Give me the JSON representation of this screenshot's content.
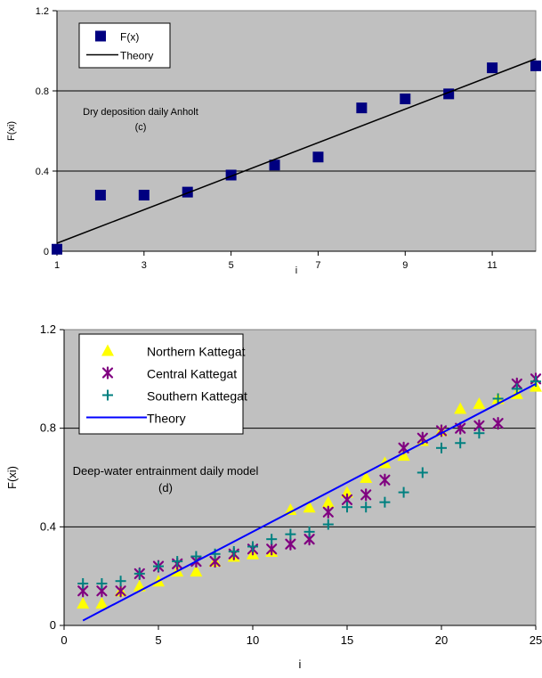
{
  "chart_data": [
    {
      "type": "scatter",
      "title": "",
      "annotation": "Dry deposition daily Anholt",
      "panel_label": "(c)",
      "xlabel": "i",
      "ylabel": "F(xi)",
      "xlim": [
        1,
        12
      ],
      "ylim": [
        0,
        1.2
      ],
      "xticks": [
        1,
        3,
        5,
        7,
        9,
        11
      ],
      "yticks": [
        0,
        0.4,
        0.8,
        1.2
      ],
      "ytick_labels": [
        "0",
        "0.4",
        "0.8",
        "1.2"
      ],
      "grid": "horizontal",
      "plot_background": "#c0c0c0",
      "legend": {
        "placement": "top-left",
        "entries": [
          "F(x)",
          "Theory"
        ]
      },
      "series": [
        {
          "name": "F(x)",
          "marker": "square",
          "color": "#000080",
          "x": [
            1,
            2,
            3,
            4,
            5,
            6,
            7,
            8,
            9,
            10,
            11,
            12
          ],
          "y": [
            0.01,
            0.28,
            0.28,
            0.295,
            0.38,
            0.43,
            0.47,
            0.715,
            0.76,
            0.785,
            0.915,
            0.925
          ]
        },
        {
          "name": "Theory",
          "marker": "line",
          "color": "#000000",
          "x": [
            1,
            12
          ],
          "y": [
            0.04,
            0.96
          ]
        }
      ]
    },
    {
      "type": "scatter",
      "title": "",
      "annotation": "Deep-water entrainment daily model",
      "panel_label": "(d)",
      "xlabel": "i",
      "ylabel": "F(xi)",
      "xlim": [
        0,
        25
      ],
      "ylim": [
        0,
        1.2
      ],
      "xticks": [
        0,
        5,
        10,
        15,
        20,
        25
      ],
      "yticks": [
        0,
        0.4,
        0.8,
        1.2
      ],
      "ytick_labels": [
        "0",
        "0.4",
        "0.8",
        "1.2"
      ],
      "grid": "horizontal",
      "plot_background": "#c0c0c0",
      "legend": {
        "placement": "top-left",
        "entries": [
          "Northern Kattegat",
          "Central Kattegat",
          "Southern Kattegat",
          "Theory"
        ]
      },
      "series": [
        {
          "name": "Northern Kattegat",
          "marker": "triangle",
          "color": "#ffff00",
          "x": [
            1,
            2,
            3,
            4,
            5,
            6,
            7,
            8,
            9,
            10,
            11,
            12,
            13,
            14,
            15,
            16,
            17,
            18,
            19,
            20,
            21,
            22,
            23,
            24,
            25
          ],
          "y": [
            0.09,
            0.09,
            0.14,
            0.16,
            0.18,
            0.22,
            0.22,
            0.26,
            0.28,
            0.29,
            0.3,
            0.47,
            0.48,
            0.5,
            0.54,
            0.6,
            0.66,
            0.69,
            0.75,
            0.79,
            0.88,
            0.9,
            0.92,
            0.94,
            0.97
          ]
        },
        {
          "name": "Central Kattegat",
          "marker": "asterisk",
          "color": "#800080",
          "x": [
            1,
            2,
            3,
            4,
            5,
            6,
            7,
            8,
            9,
            10,
            11,
            12,
            13,
            14,
            15,
            16,
            17,
            18,
            19,
            20,
            21,
            22,
            23,
            24,
            25
          ],
          "y": [
            0.14,
            0.14,
            0.14,
            0.21,
            0.24,
            0.25,
            0.26,
            0.26,
            0.29,
            0.31,
            0.31,
            0.33,
            0.35,
            0.46,
            0.51,
            0.53,
            0.59,
            0.72,
            0.76,
            0.79,
            0.8,
            0.81,
            0.82,
            0.98,
            1.0
          ]
        },
        {
          "name": "Southern Kattegat",
          "marker": "plus",
          "color": "#008080",
          "x": [
            1,
            2,
            3,
            4,
            5,
            6,
            7,
            8,
            9,
            10,
            11,
            12,
            13,
            14,
            15,
            16,
            17,
            18,
            19,
            20,
            21,
            22,
            23,
            24,
            25
          ],
          "y": [
            0.17,
            0.17,
            0.18,
            0.21,
            0.24,
            0.26,
            0.28,
            0.29,
            0.3,
            0.32,
            0.35,
            0.37,
            0.38,
            0.41,
            0.48,
            0.48,
            0.5,
            0.54,
            0.62,
            0.72,
            0.74,
            0.78,
            0.92,
            0.96,
            0.99
          ]
        },
        {
          "name": "Theory",
          "marker": "line",
          "color": "#0000ff",
          "x": [
            1,
            25
          ],
          "y": [
            0.02,
            0.98
          ]
        }
      ]
    }
  ]
}
